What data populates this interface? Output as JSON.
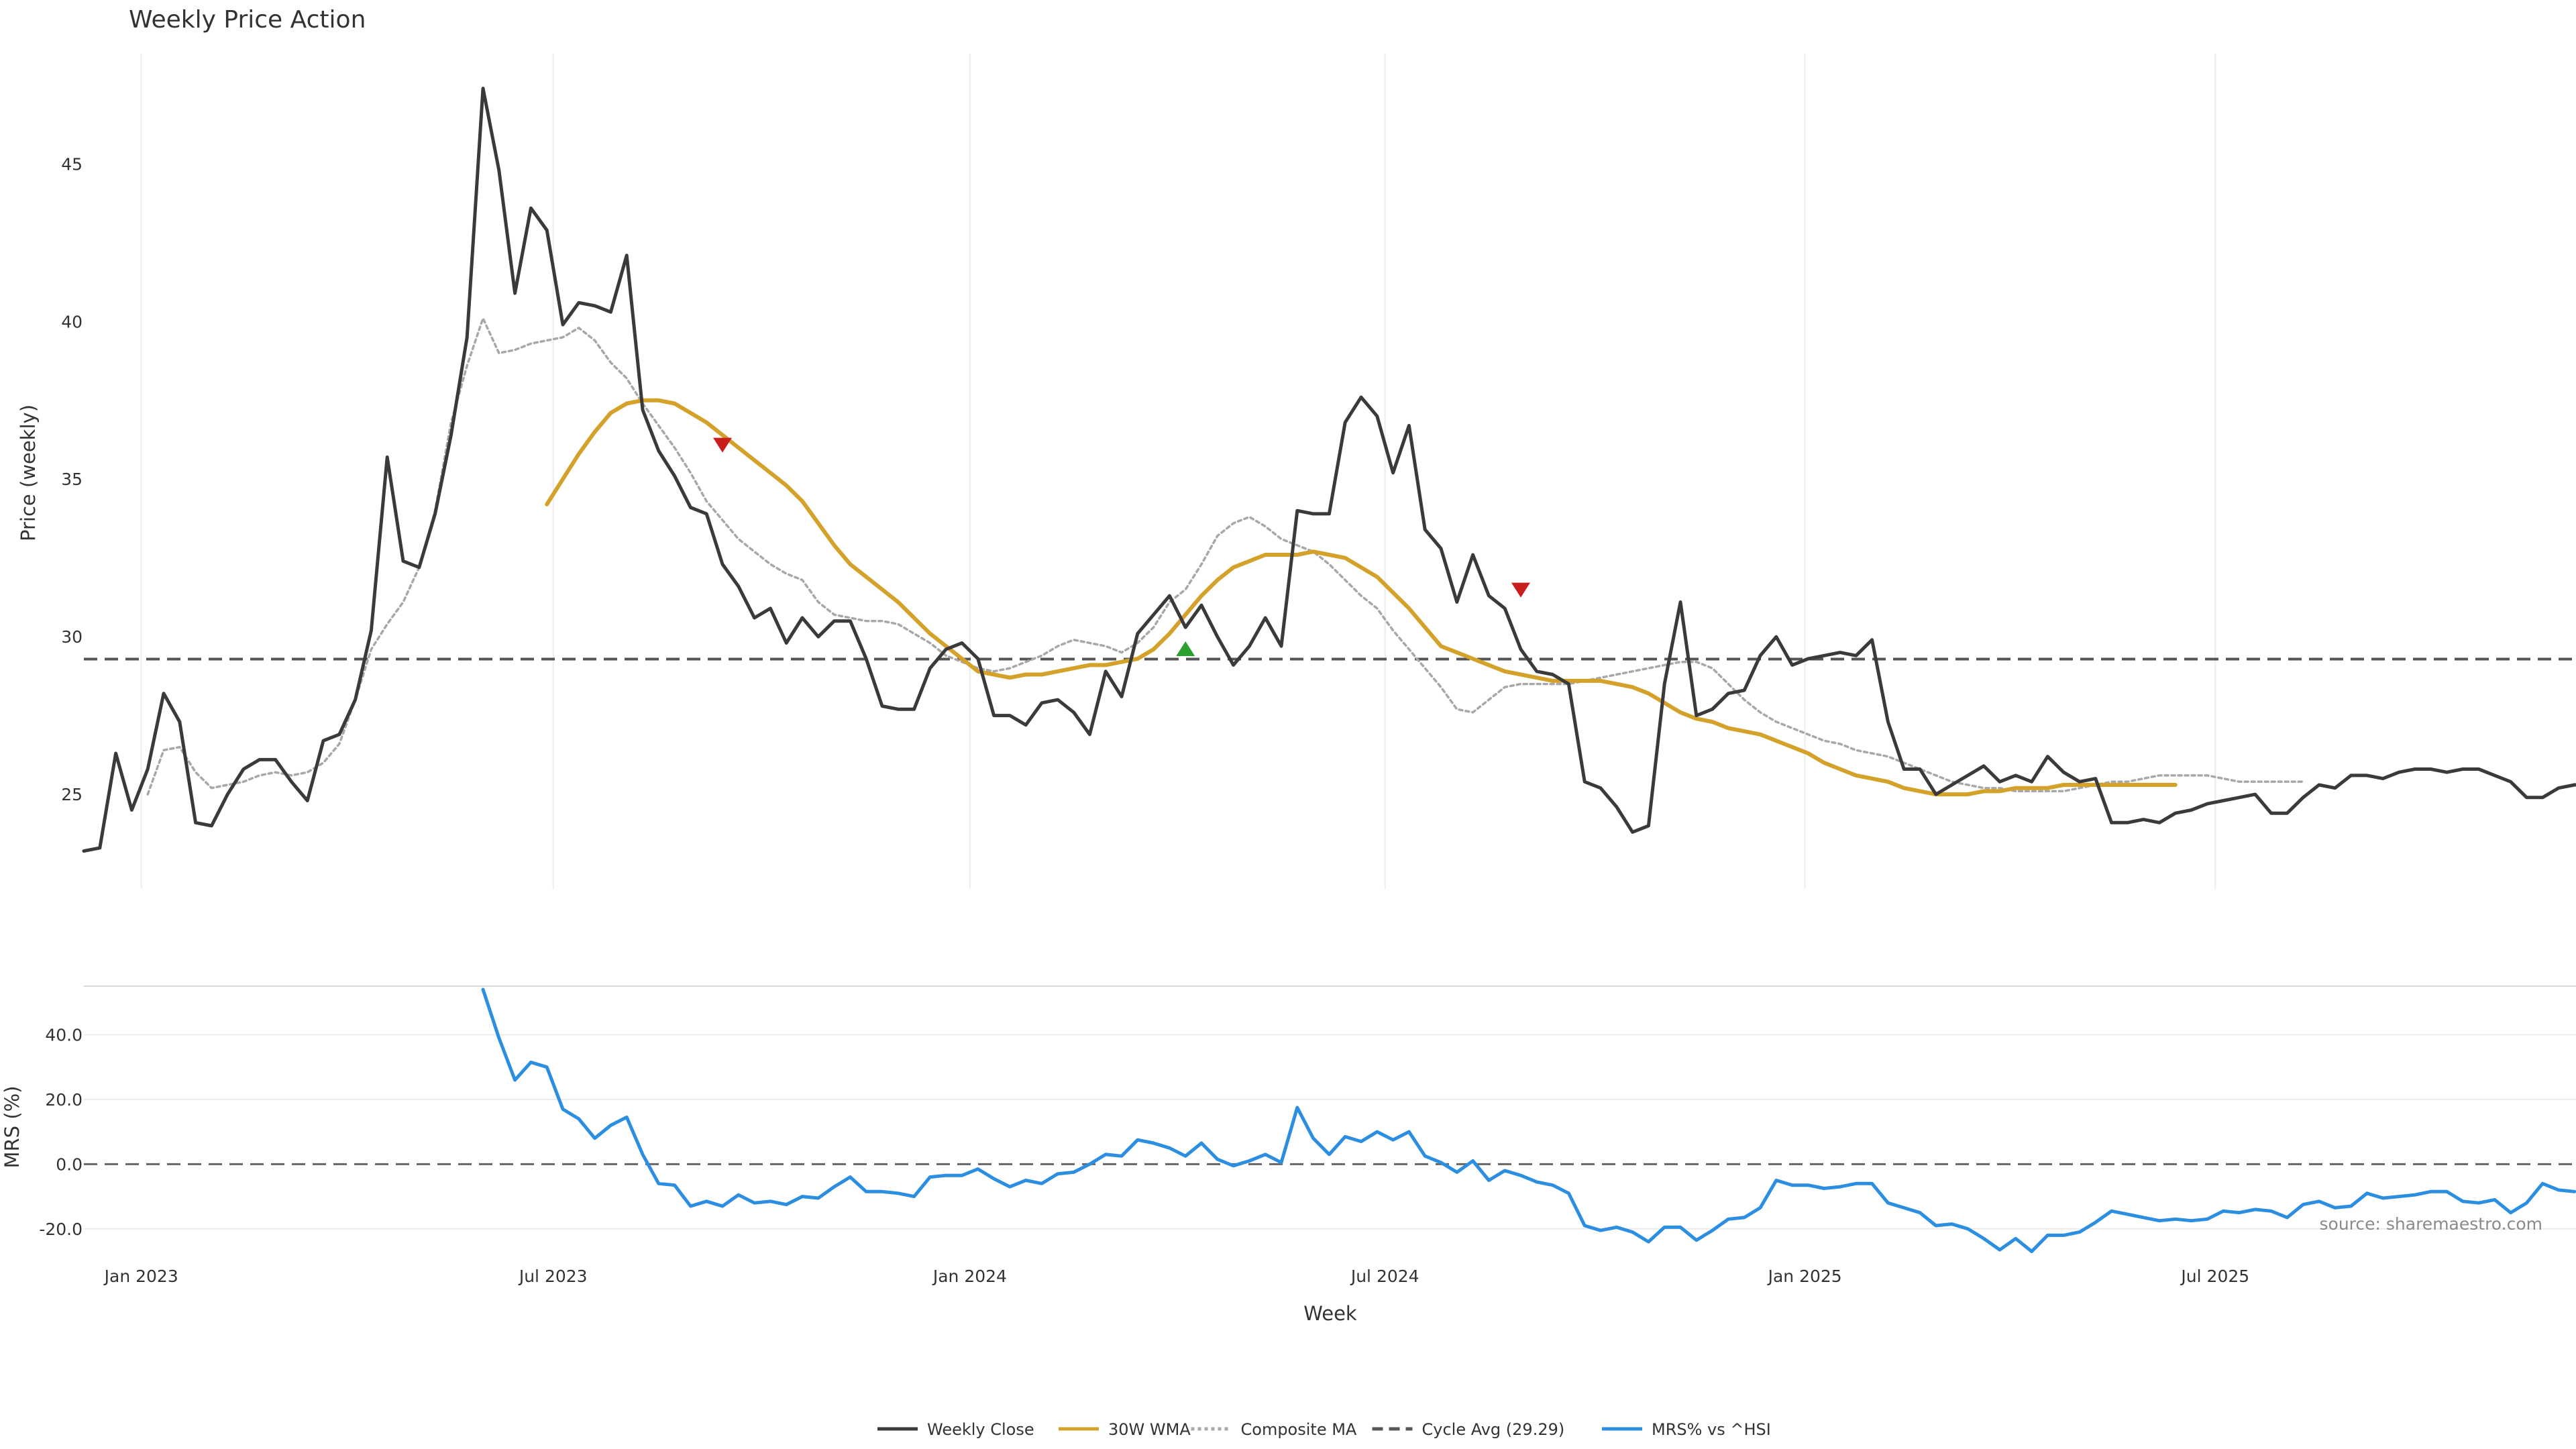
{
  "chart_data": [
    {
      "type": "line",
      "title": "Weekly Price Action",
      "xlabel": "Week",
      "ylabel": "Price (weekly)",
      "x_tick_labels": [
        "Jan 2023",
        "Jul 2023",
        "Jan 2024",
        "Jul 2024",
        "Jan 2025",
        "Jul 2025"
      ],
      "y_ticks": [
        25,
        30,
        35,
        40,
        45
      ],
      "ylim": [
        22,
        48.5
      ],
      "grid": "vertical gridlines at x ticks",
      "series": [
        {
          "name": "Weekly Close",
          "color": "#3a3a3a",
          "style": "solid",
          "values": [
            23.2,
            23.3,
            26.3,
            24.5,
            25.8,
            28.2,
            27.3,
            24.1,
            24.0,
            25.0,
            25.8,
            26.1,
            26.1,
            25.4,
            24.8,
            26.7,
            26.9,
            28.0,
            30.2,
            35.7,
            32.4,
            32.2,
            33.9,
            36.4,
            39.5,
            47.4,
            44.8,
            40.9,
            43.6,
            42.9,
            39.9,
            40.6,
            40.5,
            40.3,
            42.1,
            37.2,
            35.9,
            35.1,
            34.1,
            33.9,
            32.3,
            31.6,
            30.6,
            30.9,
            29.8,
            30.6,
            30.0,
            30.5,
            30.5,
            29.3,
            27.8,
            27.7,
            27.7,
            29.0,
            29.6,
            29.8,
            29.3,
            27.5,
            27.5,
            27.2,
            27.9,
            28.0,
            27.6,
            26.9,
            28.9,
            28.1,
            30.1,
            30.7,
            31.3,
            30.3,
            31.0,
            30.0,
            29.1,
            29.7,
            30.6,
            29.7,
            34.0,
            33.9,
            33.9,
            36.8,
            37.6,
            37.0,
            35.2,
            36.7,
            33.4,
            32.8,
            31.1,
            32.6,
            31.3,
            30.9,
            29.6,
            28.9,
            28.8,
            28.5,
            25.4,
            25.2,
            24.6,
            23.8,
            24.0,
            28.5,
            31.1,
            27.5,
            27.7,
            28.2,
            28.3,
            29.4,
            30.0,
            29.1,
            29.3,
            29.4,
            29.5,
            29.4,
            29.9,
            27.3,
            25.8,
            25.8,
            25.0,
            25.3,
            25.6,
            25.9,
            25.4,
            25.6,
            25.4,
            26.2,
            25.7,
            25.4,
            25.5,
            24.1,
            24.1,
            24.2,
            24.1,
            24.4,
            24.5,
            24.7,
            24.8,
            24.9,
            25.0,
            24.4,
            24.4,
            24.9,
            25.3,
            25.2,
            25.6,
            25.6,
            25.5,
            25.7,
            25.8,
            25.8,
            25.7,
            25.8,
            25.8,
            25.6,
            25.4,
            24.9,
            24.9,
            25.2,
            25.3,
            25.3
          ]
        },
        {
          "name": "30W WMA",
          "color": "#d4a22a",
          "style": "solid",
          "values": [
            null,
            null,
            null,
            null,
            null,
            null,
            null,
            null,
            null,
            null,
            null,
            null,
            null,
            null,
            null,
            null,
            null,
            null,
            null,
            null,
            null,
            null,
            null,
            null,
            null,
            null,
            null,
            null,
            null,
            34.2,
            35.0,
            35.8,
            36.5,
            37.1,
            37.4,
            37.5,
            37.5,
            37.4,
            37.1,
            36.8,
            36.4,
            36.0,
            35.6,
            35.2,
            34.8,
            34.3,
            33.6,
            32.9,
            32.3,
            31.9,
            31.5,
            31.1,
            30.6,
            30.1,
            29.7,
            29.3,
            28.9,
            28.8,
            28.7,
            28.8,
            28.8,
            28.9,
            29.0,
            29.1,
            29.1,
            29.2,
            29.3,
            29.6,
            30.1,
            30.7,
            31.3,
            31.8,
            32.2,
            32.4,
            32.6,
            32.6,
            32.6,
            32.7,
            32.6,
            32.5,
            32.2,
            31.9,
            31.4,
            30.9,
            30.3,
            29.7,
            29.5,
            29.3,
            29.1,
            28.9,
            28.8,
            28.7,
            28.6,
            28.6,
            28.6,
            28.6,
            28.5,
            28.4,
            28.2,
            27.9,
            27.6,
            27.4,
            27.3,
            27.1,
            27.0,
            26.9,
            26.7,
            26.5,
            26.3,
            26.0,
            25.8,
            25.6,
            25.5,
            25.4,
            25.2,
            25.1,
            25.0,
            25.0,
            25.0,
            25.1,
            25.1,
            25.2,
            25.2,
            25.2,
            25.3,
            25.3,
            25.3,
            25.3,
            25.3,
            25.3,
            25.3,
            25.3
          ]
        },
        {
          "name": "Composite MA",
          "color": "#a8a8a8",
          "style": "dotted",
          "values": [
            null,
            null,
            null,
            null,
            25.0,
            26.4,
            26.5,
            25.7,
            25.2,
            25.3,
            25.4,
            25.6,
            25.7,
            25.6,
            25.7,
            26.0,
            26.6,
            28.0,
            29.6,
            30.4,
            31.1,
            32.2,
            34.0,
            36.8,
            38.6,
            40.1,
            39.0,
            39.1,
            39.3,
            39.4,
            39.5,
            39.8,
            39.4,
            38.7,
            38.2,
            37.4,
            36.7,
            36.0,
            35.2,
            34.3,
            33.7,
            33.1,
            32.7,
            32.3,
            32.0,
            31.8,
            31.1,
            30.7,
            30.6,
            30.5,
            30.5,
            30.4,
            30.1,
            29.8,
            29.4,
            29.2,
            29.0,
            28.9,
            29.0,
            29.2,
            29.4,
            29.7,
            29.9,
            29.8,
            29.7,
            29.5,
            29.8,
            30.3,
            31.1,
            31.5,
            32.3,
            33.2,
            33.6,
            33.8,
            33.5,
            33.1,
            32.9,
            32.7,
            32.3,
            31.8,
            31.3,
            30.9,
            30.2,
            29.6,
            29.0,
            28.4,
            27.7,
            27.6,
            28.0,
            28.4,
            28.5,
            28.5,
            28.5,
            28.5,
            28.6,
            28.7,
            28.8,
            28.9,
            29.0,
            29.1,
            29.2,
            29.2,
            29.0,
            28.5,
            28.0,
            27.6,
            27.3,
            27.1,
            26.9,
            26.7,
            26.6,
            26.4,
            26.3,
            26.2,
            26.0,
            25.8,
            25.6,
            25.4,
            25.3,
            25.2,
            25.2,
            25.1,
            25.1,
            25.1,
            25.1,
            25.2,
            25.3,
            25.4,
            25.4,
            25.5,
            25.6,
            25.6,
            25.6,
            25.6,
            25.5,
            25.4,
            25.4,
            25.4,
            25.4,
            25.4
          ]
        },
        {
          "name": "Cycle Avg (29.29)",
          "color": "#555555",
          "style": "dashed",
          "value": 29.29
        }
      ],
      "markers": [
        {
          "kind": "sell",
          "shape": "down-triangle",
          "color": "#c81e1e",
          "x_week": 40,
          "y": 36.1
        },
        {
          "kind": "buy",
          "shape": "up-triangle",
          "color": "#2ca02c",
          "x_week": 69,
          "y": 29.6
        },
        {
          "kind": "sell",
          "shape": "down-triangle",
          "color": "#c81e1e",
          "x_week": 90,
          "y": 31.5
        }
      ]
    },
    {
      "type": "line",
      "xlabel": "Week",
      "ylabel": "MRS (%)",
      "y_ticks": [
        "40.0",
        "20.0",
        "0.0",
        "-20.0"
      ],
      "ylim": [
        -30,
        54
      ],
      "zero_line": "dashed",
      "annotation": "source: sharemaestro.com",
      "series": [
        {
          "name": "MRS% vs ^HSI",
          "color": "#2b8ee0",
          "style": "solid",
          "values": [
            null,
            null,
            null,
            null,
            null,
            null,
            null,
            null,
            null,
            null,
            null,
            null,
            null,
            null,
            null,
            null,
            null,
            null,
            null,
            null,
            null,
            null,
            null,
            null,
            null,
            54.0,
            39.0,
            26.0,
            31.5,
            30.0,
            17.0,
            14.0,
            8.0,
            12.0,
            14.5,
            3.0,
            -6.0,
            -6.5,
            -13.0,
            -11.5,
            -13.0,
            -9.5,
            -12.0,
            -11.5,
            -12.5,
            -10.0,
            -10.5,
            -7.0,
            -4.0,
            -8.5,
            -8.5,
            -9.0,
            -10.0,
            -4.0,
            -3.5,
            -3.5,
            -1.5,
            -4.5,
            -7.0,
            -5.0,
            -6.0,
            -3.0,
            -2.5,
            0.0,
            3.0,
            2.5,
            7.5,
            6.5,
            5.0,
            2.5,
            6.5,
            1.5,
            -0.5,
            1.0,
            3.0,
            0.5,
            17.5,
            8.0,
            3.0,
            8.5,
            7.0,
            10.0,
            7.5,
            10.0,
            2.5,
            0.5,
            -2.5,
            1.0,
            -5.0,
            -2.0,
            -3.5,
            -5.5,
            -6.5,
            -9.0,
            -19.0,
            -20.5,
            -19.5,
            -21.0,
            -24.0,
            -19.5,
            -19.5,
            -23.5,
            -20.5,
            -17.0,
            -16.5,
            -13.5,
            -5.0,
            -6.5,
            -6.5,
            -7.5,
            -7.0,
            -6.0,
            -6.0,
            -12.0,
            -13.5,
            -15.0,
            -19.0,
            -18.5,
            -20.0,
            -23.0,
            -26.5,
            -23.0,
            -27.0,
            -22.0,
            -22.0,
            -21.0,
            -18.0,
            -14.5,
            -15.5,
            -16.5,
            -17.5,
            -17.0,
            -17.5,
            -17.0,
            -14.5,
            -15.0,
            -14.0,
            -14.5,
            -16.5,
            -12.5,
            -11.5,
            -13.5,
            -13.0,
            -9.0,
            -10.5,
            -10.0,
            -9.5,
            -8.5,
            -8.5,
            -11.5,
            -12.0,
            -11.0,
            -15.0,
            -12.0,
            -6.0,
            -8.0,
            -8.5
          ]
        }
      ]
    }
  ],
  "legend": {
    "placement": "bottom-center",
    "items": [
      {
        "label": "Weekly Close",
        "color": "#3a3a3a",
        "style": "solid"
      },
      {
        "label": "30W WMA",
        "color": "#d4a22a",
        "style": "solid"
      },
      {
        "label": "Composite MA",
        "color": "#a8a8a8",
        "style": "dotted"
      },
      {
        "label": "Cycle Avg (29.29)",
        "color": "#555555",
        "style": "dashed"
      },
      {
        "label": "MRS% vs ^HSI",
        "color": "#2b8ee0",
        "style": "solid"
      }
    ]
  }
}
